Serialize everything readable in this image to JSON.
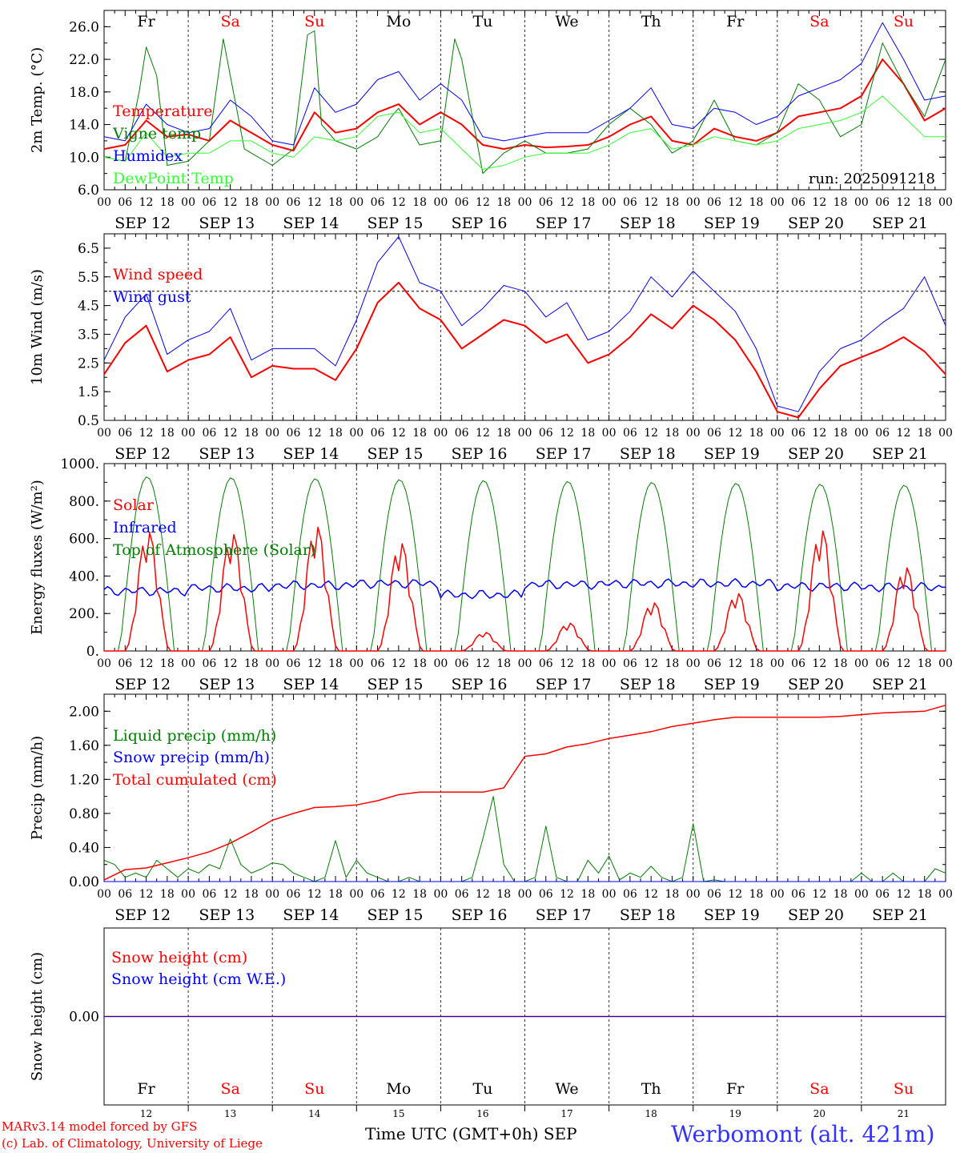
{
  "chart_data": [
    {
      "type": "line",
      "ylabel": "2m Temp. (°C)",
      "ylim": [
        6,
        28
      ],
      "yticks": [
        "6.0",
        "10.0",
        "14.0",
        "18.0",
        "22.0",
        "26.0"
      ],
      "annotation": "run: 2025091218",
      "day_labels": [
        {
          "label": "Fr",
          "color": "#000000"
        },
        {
          "label": "Sa",
          "color": "#ff0000"
        },
        {
          "label": "Su",
          "color": "#ff0000"
        },
        {
          "label": "Mo",
          "color": "#000000"
        },
        {
          "label": "Tu",
          "color": "#000000"
        },
        {
          "label": "We",
          "color": "#000000"
        },
        {
          "label": "Th",
          "color": "#000000"
        },
        {
          "label": "Fr",
          "color": "#000000"
        },
        {
          "label": "Sa",
          "color": "#ff0000"
        },
        {
          "label": "Su",
          "color": "#ff0000"
        }
      ],
      "series": [
        {
          "name": "Temperature",
          "color": "#ff0000",
          "width": 2,
          "x": [
            0,
            6,
            12,
            18,
            24,
            30,
            36,
            42,
            48,
            54,
            60,
            66,
            72,
            78,
            84,
            90,
            96,
            102,
            108,
            114,
            120,
            126,
            132,
            138,
            144,
            150,
            156,
            162,
            168,
            174,
            180,
            186,
            192,
            198,
            204,
            210,
            216,
            222,
            228,
            234,
            240
          ],
          "y": [
            11,
            11.5,
            14.5,
            12.5,
            12.8,
            12,
            14.5,
            13,
            11.5,
            10.8,
            15.5,
            13,
            13.5,
            15.5,
            16.5,
            14,
            15.5,
            14,
            11.5,
            11,
            11.5,
            11.2,
            11.3,
            11.5,
            12.5,
            14,
            15,
            12,
            11.5,
            13.5,
            12.5,
            12,
            13,
            15,
            15.5,
            16,
            17.5,
            22,
            19,
            14.5,
            16
          ]
        },
        {
          "name": "Vigne temp",
          "color": "#008000",
          "width": 1,
          "x": [
            0,
            6,
            10,
            12,
            15,
            18,
            24,
            30,
            34,
            36,
            40,
            42,
            48,
            54,
            58,
            60,
            62,
            66,
            72,
            78,
            82,
            84,
            90,
            96,
            100,
            102,
            108,
            114,
            120,
            126,
            132,
            138,
            144,
            150,
            156,
            162,
            168,
            174,
            180,
            186,
            192,
            198,
            204,
            210,
            216,
            222,
            228,
            234,
            240
          ],
          "y": [
            10,
            9.5,
            18,
            23.5,
            20,
            9,
            9.5,
            12,
            24.5,
            20,
            11,
            10.5,
            9,
            11,
            25,
            25.5,
            14,
            12,
            11,
            12.5,
            15,
            16,
            11.5,
            12,
            24.5,
            22,
            8,
            10.5,
            12,
            10.5,
            10.5,
            11,
            14,
            16,
            14,
            10.5,
            12,
            17,
            12,
            11.5,
            13,
            19,
            17,
            12.5,
            14,
            24,
            19,
            15,
            22
          ]
        },
        {
          "name": "Humidex",
          "color": "#0000ff",
          "width": 1,
          "x": [
            0,
            6,
            12,
            18,
            24,
            30,
            36,
            42,
            48,
            54,
            60,
            66,
            72,
            78,
            84,
            90,
            96,
            102,
            108,
            114,
            120,
            126,
            132,
            138,
            144,
            150,
            156,
            162,
            168,
            174,
            180,
            186,
            192,
            198,
            204,
            210,
            216,
            222,
            228,
            234,
            240
          ],
          "y": [
            12.5,
            12,
            16.5,
            14,
            13,
            13.5,
            17,
            15,
            12,
            11.5,
            18.5,
            15.5,
            16.5,
            19.5,
            20.5,
            17,
            19,
            17,
            12.5,
            12,
            12.5,
            13,
            13,
            13,
            14.5,
            16,
            18.5,
            14,
            13.5,
            16,
            15.5,
            14,
            15,
            17.5,
            18.5,
            19.5,
            21.5,
            26.5,
            22,
            17,
            17.5
          ]
        },
        {
          "name": "DewPoint Temp",
          "color": "#33ff33",
          "width": 1,
          "x": [
            0,
            6,
            12,
            18,
            24,
            30,
            36,
            42,
            48,
            54,
            60,
            66,
            72,
            78,
            84,
            90,
            96,
            102,
            108,
            114,
            120,
            126,
            132,
            138,
            144,
            150,
            156,
            162,
            168,
            174,
            180,
            186,
            192,
            198,
            204,
            210,
            216,
            222,
            228,
            234,
            240
          ],
          "y": [
            10,
            9.5,
            13,
            10,
            10.5,
            10.5,
            12,
            12,
            10.5,
            10,
            12.5,
            12,
            12.5,
            15,
            15.5,
            13,
            13.5,
            11,
            8.5,
            9,
            10,
            10.5,
            10.5,
            10.5,
            11.5,
            13,
            13.5,
            11,
            11.5,
            12.5,
            12,
            11.5,
            12,
            13.5,
            14,
            14.5,
            15.5,
            17.5,
            15,
            12.5,
            12.5
          ]
        }
      ]
    },
    {
      "type": "line",
      "ylabel": "10m Wind (m/s)",
      "ylim": [
        0.5,
        7.0
      ],
      "yticks": [
        "0.5",
        "1.5",
        "2.5",
        "3.5",
        "4.5",
        "5.5",
        "6.5"
      ],
      "reference_line": 5.0,
      "series": [
        {
          "name": "Wind speed",
          "color": "#ff0000",
          "width": 2,
          "x": [
            0,
            6,
            12,
            18,
            24,
            30,
            36,
            42,
            48,
            54,
            60,
            66,
            72,
            78,
            84,
            90,
            96,
            102,
            108,
            114,
            120,
            126,
            132,
            138,
            144,
            150,
            156,
            162,
            168,
            174,
            180,
            186,
            192,
            198,
            204,
            210,
            216,
            222,
            228,
            234,
            240
          ],
          "y": [
            2.1,
            3.2,
            3.8,
            2.2,
            2.6,
            2.8,
            3.4,
            2.0,
            2.4,
            2.3,
            2.3,
            1.9,
            3.0,
            4.6,
            5.3,
            4.4,
            4.0,
            3.0,
            3.5,
            4.0,
            3.8,
            3.2,
            3.5,
            2.5,
            2.8,
            3.4,
            4.2,
            3.7,
            4.5,
            4.0,
            3.3,
            2.2,
            0.8,
            0.6,
            1.6,
            2.4,
            2.7,
            3.0,
            3.4,
            2.9,
            2.1
          ]
        },
        {
          "name": "Wind gust",
          "color": "#0000ff",
          "width": 1,
          "x": [
            0,
            6,
            12,
            18,
            24,
            30,
            36,
            42,
            48,
            54,
            60,
            66,
            72,
            78,
            84,
            90,
            96,
            102,
            108,
            114,
            120,
            126,
            132,
            138,
            144,
            150,
            156,
            162,
            168,
            174,
            180,
            186,
            192,
            198,
            204,
            210,
            216,
            222,
            228,
            234,
            240
          ],
          "y": [
            2.6,
            4.1,
            4.9,
            2.8,
            3.3,
            3.6,
            4.4,
            2.6,
            3.0,
            3.0,
            3.0,
            2.4,
            4.0,
            6.0,
            6.9,
            5.3,
            5.0,
            3.8,
            4.4,
            5.2,
            5.0,
            4.1,
            4.6,
            3.3,
            3.6,
            4.3,
            5.5,
            4.8,
            5.7,
            5.0,
            4.3,
            3.0,
            1.0,
            0.8,
            2.2,
            3.0,
            3.3,
            3.9,
            4.4,
            5.5,
            3.8
          ]
        }
      ]
    },
    {
      "type": "line",
      "ylabel": "Energy fluxes (W/m²)",
      "ylim": [
        0,
        1000
      ],
      "yticks": [
        "0.",
        "200.",
        "400.",
        "600.",
        "800.",
        "1000."
      ],
      "solar_peaks": [
        640,
        630,
        670,
        580,
        100,
        150,
        260,
        310,
        650,
        450
      ],
      "toa_peaks": [
        930,
        925,
        920,
        915,
        910,
        905,
        900,
        895,
        890,
        885
      ],
      "ir_baseline": [
        320,
        335,
        350,
        360,
        300,
        355,
        360,
        360,
        345,
        340
      ],
      "series": [
        {
          "name": "Solar",
          "color": "#ff0000",
          "width": 1.5
        },
        {
          "name": "Infrared",
          "color": "#0000ff",
          "width": 1.5
        },
        {
          "name": "Top of Atmosphere (Solar)",
          "color": "#008000",
          "width": 1
        }
      ]
    },
    {
      "type": "line",
      "ylabel": "Precip (mm/h)",
      "ylim": [
        0,
        2.2
      ],
      "yticks": [
        "0.00",
        "0.40",
        "0.80",
        "1.20",
        "1.60",
        "2.00"
      ],
      "series": [
        {
          "name": "Liquid precip (mm/h)",
          "color": "#008000",
          "width": 1,
          "x": [
            0,
            3,
            6,
            9,
            12,
            15,
            18,
            21,
            24,
            27,
            30,
            33,
            36,
            39,
            42,
            45,
            48,
            51,
            54,
            57,
            60,
            63,
            66,
            69,
            72,
            75,
            78,
            81,
            84,
            87,
            90,
            93,
            96,
            99,
            102,
            105,
            108,
            111,
            114,
            117,
            120,
            123,
            126,
            129,
            132,
            135,
            138,
            141,
            144,
            147,
            150,
            153,
            156,
            159,
            162,
            165,
            168,
            171,
            174,
            177,
            180,
            183,
            186,
            189,
            192,
            195,
            198,
            201,
            204,
            207,
            210,
            213,
            216,
            219,
            222,
            225,
            228,
            231,
            234,
            237,
            240
          ],
          "y": [
            0.25,
            0.2,
            0.05,
            0.1,
            0.05,
            0.25,
            0.15,
            0.05,
            0.15,
            0.1,
            0.2,
            0.15,
            0.5,
            0.2,
            0.1,
            0.15,
            0.22,
            0.2,
            0.1,
            0.05,
            0,
            0.05,
            0.48,
            0.05,
            0.25,
            0.1,
            0.05,
            0,
            0,
            0.05,
            0,
            0,
            0,
            0,
            0,
            0.05,
            0.5,
            1.0,
            0.2,
            0,
            0,
            0.05,
            0.65,
            0.05,
            0,
            0,
            0.25,
            0.1,
            0.3,
            0.02,
            0.1,
            0.05,
            0.18,
            0.05,
            0,
            0.05,
            0.68,
            0,
            0.02,
            0,
            0,
            0,
            0,
            0,
            0,
            0,
            0,
            0,
            0,
            0,
            0,
            0,
            0.1,
            0,
            0,
            0.1,
            0,
            0,
            0,
            0.15,
            0.1
          ]
        },
        {
          "name": "Snow precip (mm/h)",
          "color": "#0000ff",
          "width": 1,
          "x": [
            0,
            240
          ],
          "y": [
            0,
            0
          ]
        },
        {
          "name": "Total cumulated (cm)",
          "color": "#ff0000",
          "width": 1.5,
          "x": [
            0,
            6,
            12,
            18,
            24,
            30,
            36,
            42,
            48,
            54,
            60,
            66,
            72,
            78,
            84,
            90,
            96,
            102,
            108,
            114,
            120,
            126,
            132,
            138,
            144,
            150,
            156,
            162,
            168,
            174,
            180,
            186,
            192,
            198,
            204,
            210,
            216,
            222,
            228,
            234,
            240
          ],
          "y": [
            0.02,
            0.14,
            0.16,
            0.22,
            0.28,
            0.35,
            0.45,
            0.58,
            0.72,
            0.8,
            0.87,
            0.88,
            0.9,
            0.95,
            1.02,
            1.05,
            1.05,
            1.05,
            1.05,
            1.1,
            1.47,
            1.5,
            1.58,
            1.62,
            1.68,
            1.72,
            1.76,
            1.82,
            1.86,
            1.9,
            1.93,
            1.93,
            1.93,
            1.93,
            1.93,
            1.94,
            1.96,
            1.98,
            1.99,
            2.0,
            2.07
          ]
        }
      ]
    },
    {
      "type": "line",
      "ylabel": "Snow height (cm)",
      "ylim": [
        -1,
        1
      ],
      "yticks": [
        "0.00"
      ],
      "series": [
        {
          "name": "Snow height (cm)",
          "color": "#ff0000",
          "width": 1.5,
          "x": [
            0,
            240
          ],
          "y": [
            0,
            0
          ]
        },
        {
          "name": "Snow height (cm W.E.)",
          "color": "#0000ff",
          "width": 1,
          "x": [
            0,
            240
          ],
          "y": [
            0,
            0
          ]
        }
      ],
      "day_labels": [
        {
          "label": "Fr",
          "color": "#000000"
        },
        {
          "label": "Sa",
          "color": "#ff0000"
        },
        {
          "label": "Su",
          "color": "#ff0000"
        },
        {
          "label": "Mo",
          "color": "#000000"
        },
        {
          "label": "Tu",
          "color": "#000000"
        },
        {
          "label": "We",
          "color": "#000000"
        },
        {
          "label": "Th",
          "color": "#000000"
        },
        {
          "label": "Fr",
          "color": "#000000"
        },
        {
          "label": "Sa",
          "color": "#ff0000"
        },
        {
          "label": "Su",
          "color": "#ff0000"
        }
      ],
      "day_numbers": [
        "12",
        "13",
        "14",
        "15",
        "16",
        "17",
        "18",
        "19",
        "20",
        "21"
      ]
    }
  ],
  "x_axis": {
    "hour_labels": [
      "00",
      "06",
      "12",
      "18"
    ],
    "end_label": "00",
    "date_labels": [
      "SEP 12",
      "SEP 13",
      "SEP 14",
      "SEP 15",
      "SEP 16",
      "SEP 17",
      "SEP 18",
      "SEP 19",
      "SEP 20",
      "SEP 21"
    ],
    "hours_total": 240
  },
  "footer": {
    "credit_line1": "MARv3.14 model forced by GFS",
    "credit_line2": "(c) Lab. of Climatology, University of Liege",
    "axis_title": "Time UTC (GMT+0h) SEP",
    "station": "Werbomont (alt. 421m)"
  }
}
